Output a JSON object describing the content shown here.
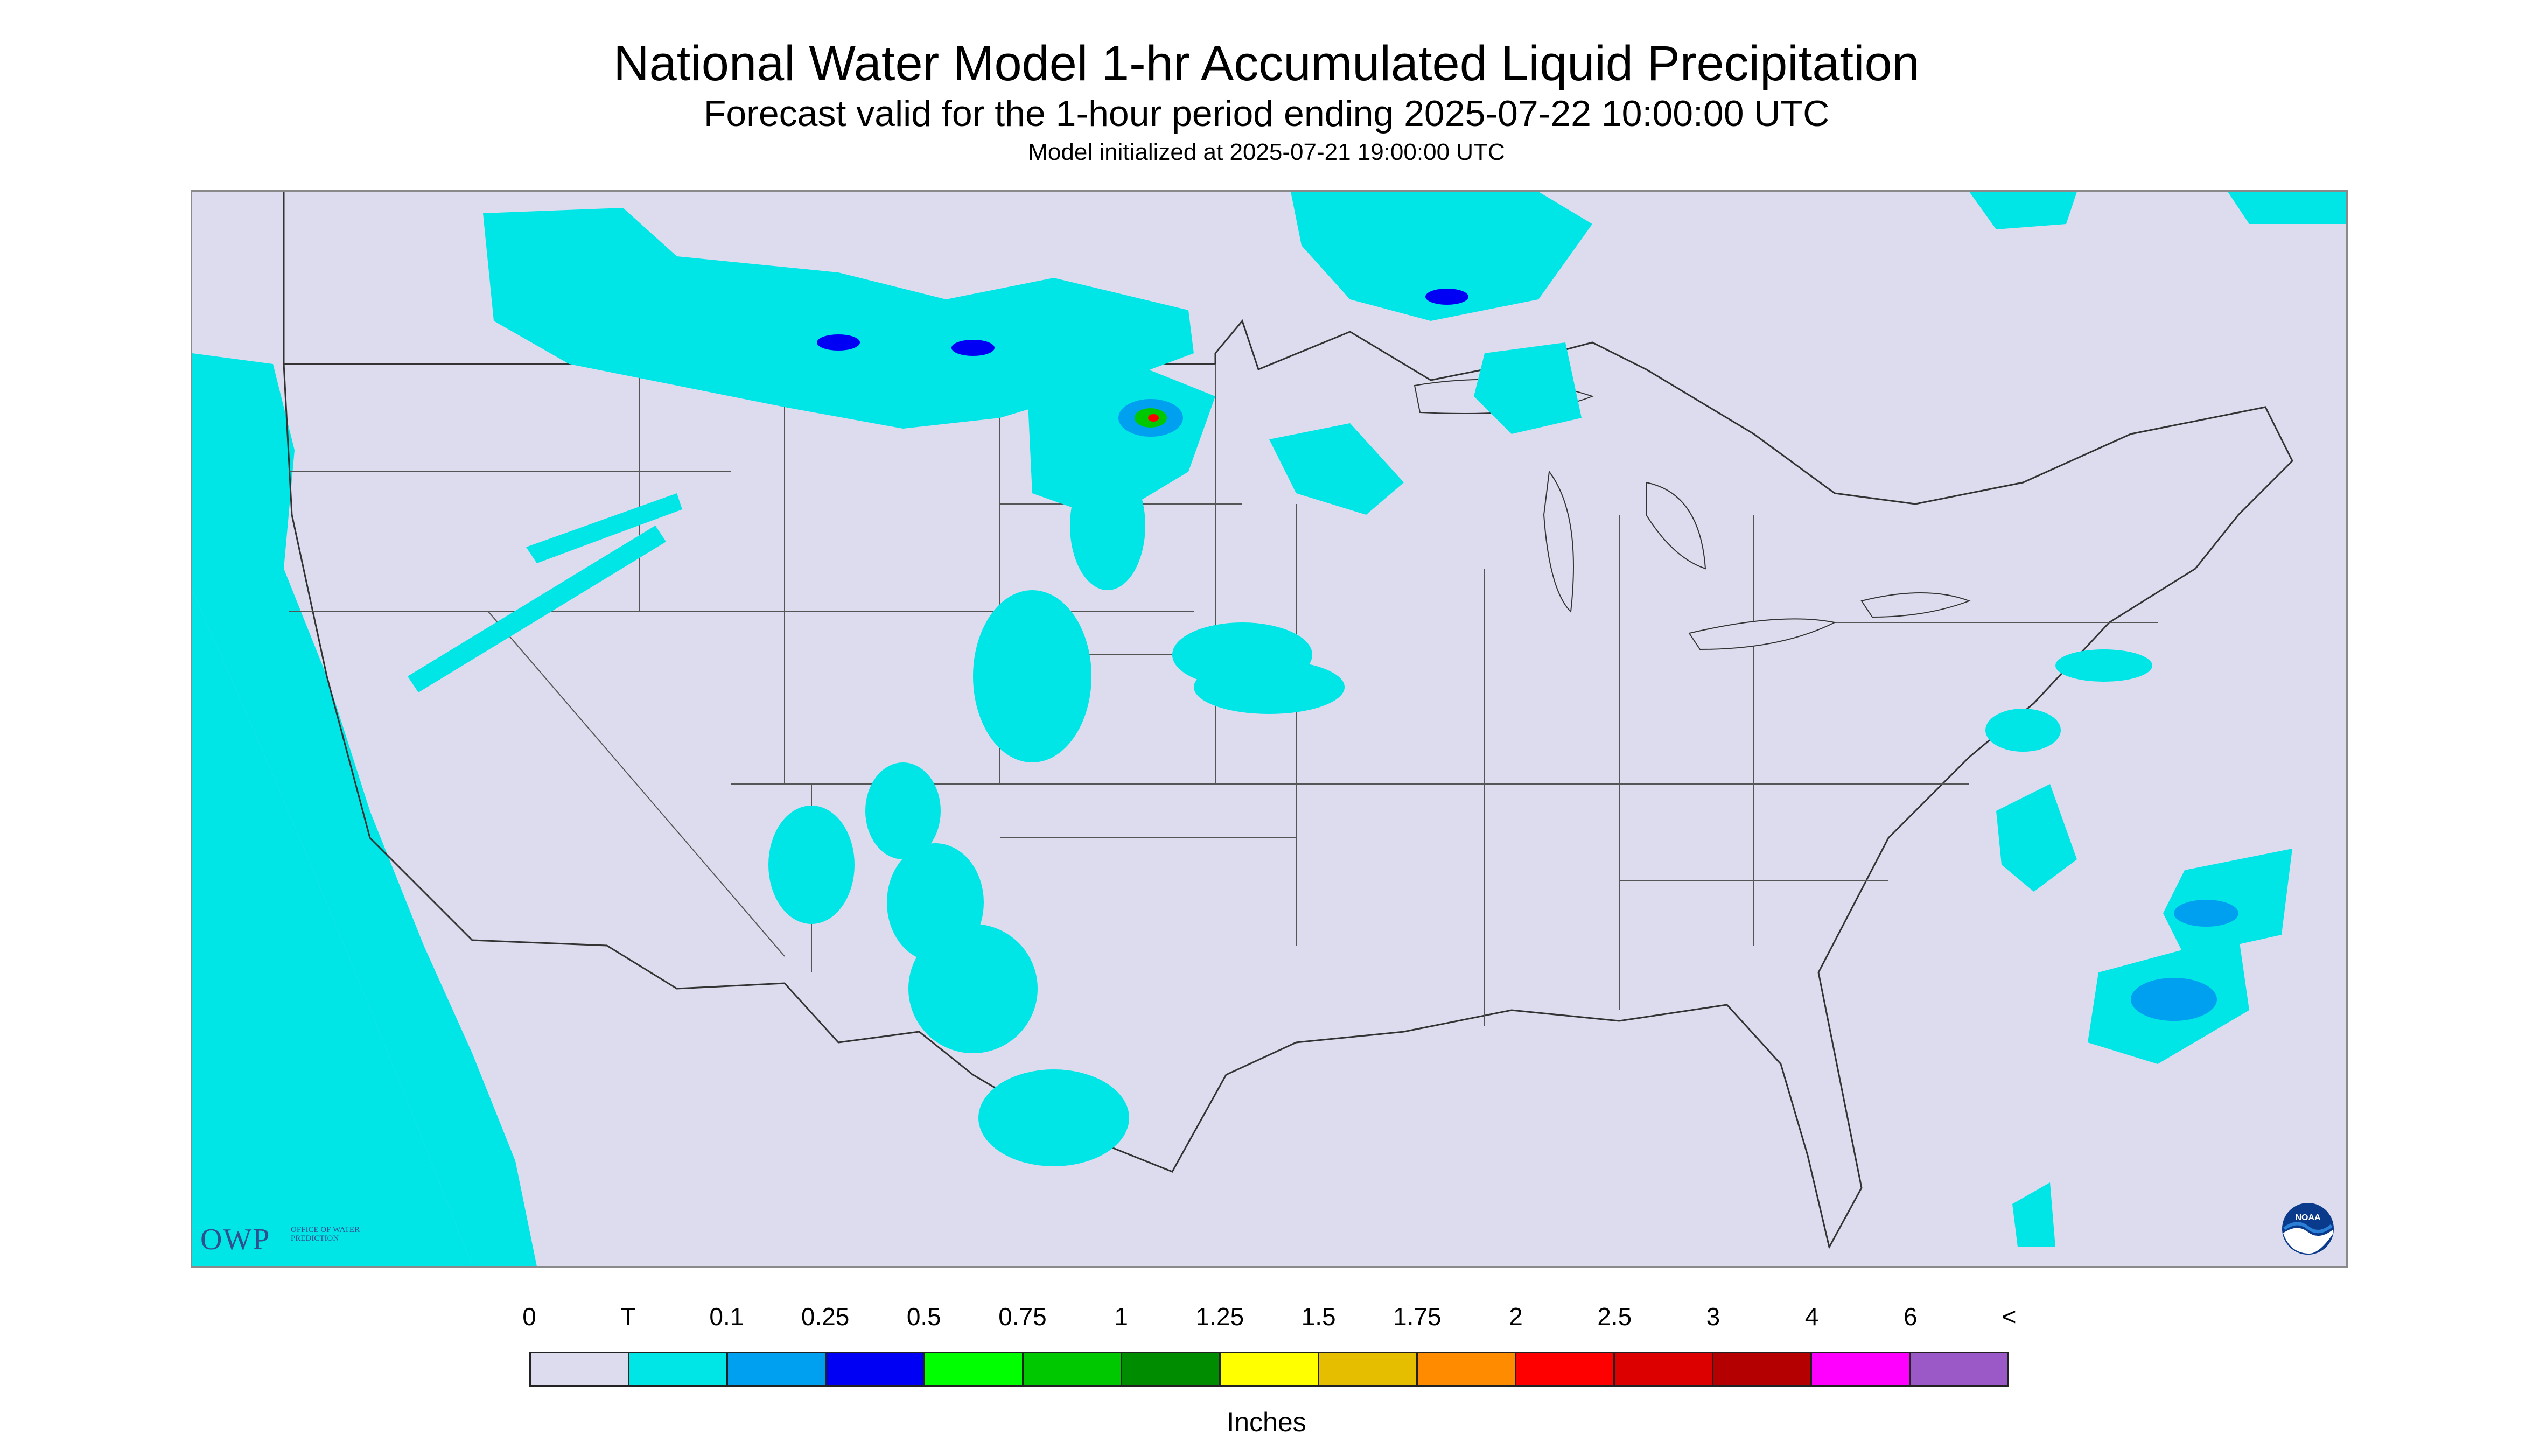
{
  "header": {
    "title": "National Water Model 1-hr Accumulated Liquid Precipitation",
    "subtitle": "Forecast valid for the 1-hour period ending 2025-07-22 10:00:00 UTC",
    "init": "Model initialized at 2025-07-21 19:00:00 UTC"
  },
  "map": {
    "background_color": "#dcdcee",
    "region": "Continental United States"
  },
  "logos": {
    "owp_text": "OWP",
    "owp_subtext": "OFFICE OF WATER PREDICTION",
    "noaa_text": "NOAA"
  },
  "legend": {
    "labels": [
      "0",
      "T",
      "0.1",
      "0.25",
      "0.5",
      "0.75",
      "1",
      "1.25",
      "1.5",
      "1.75",
      "2",
      "2.5",
      "3",
      "4",
      "6",
      "<"
    ],
    "colors": [
      "#dcdcee",
      "#00e5e5",
      "#00a0f0",
      "#0000f5",
      "#00ff00",
      "#00c800",
      "#008c00",
      "#ffff00",
      "#e6be00",
      "#ff8c00",
      "#ff0000",
      "#dc0000",
      "#b40000",
      "#ff00ff",
      "#9b59c8"
    ],
    "units": "Inches"
  }
}
